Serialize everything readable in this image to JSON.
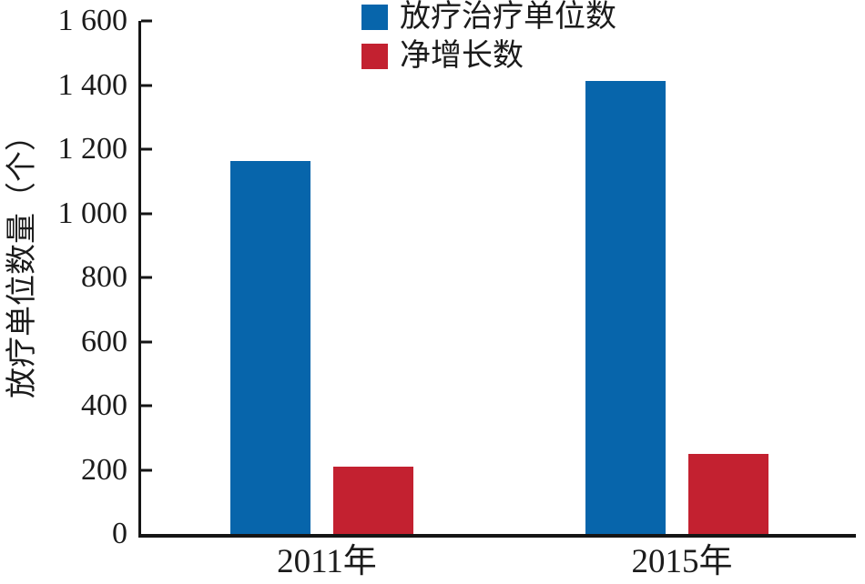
{
  "chart_data": {
    "type": "bar",
    "title": "",
    "categories": [
      "2011年",
      "2015年"
    ],
    "series": [
      {
        "name": "放疗治疗单位数",
        "color": "#0765ab",
        "values": [
          1162,
          1413
        ]
      },
      {
        "name": "净增长数",
        "color": "#c32130",
        "values": [
          210,
          251
        ]
      }
    ],
    "xlabel": "",
    "ylabel": "放疗单位数量（个）",
    "ylim": [
      0,
      1600
    ],
    "ytick_values": [
      0,
      200,
      400,
      600,
      800,
      1000,
      1200,
      1400,
      1600
    ],
    "ytick_labels": [
      "0",
      "200",
      "400",
      "600",
      "800",
      "1 000",
      "1 200",
      "1 400",
      "1 600"
    ],
    "legend_position": "top-center",
    "grid": false,
    "axis_color": "#151515"
  }
}
